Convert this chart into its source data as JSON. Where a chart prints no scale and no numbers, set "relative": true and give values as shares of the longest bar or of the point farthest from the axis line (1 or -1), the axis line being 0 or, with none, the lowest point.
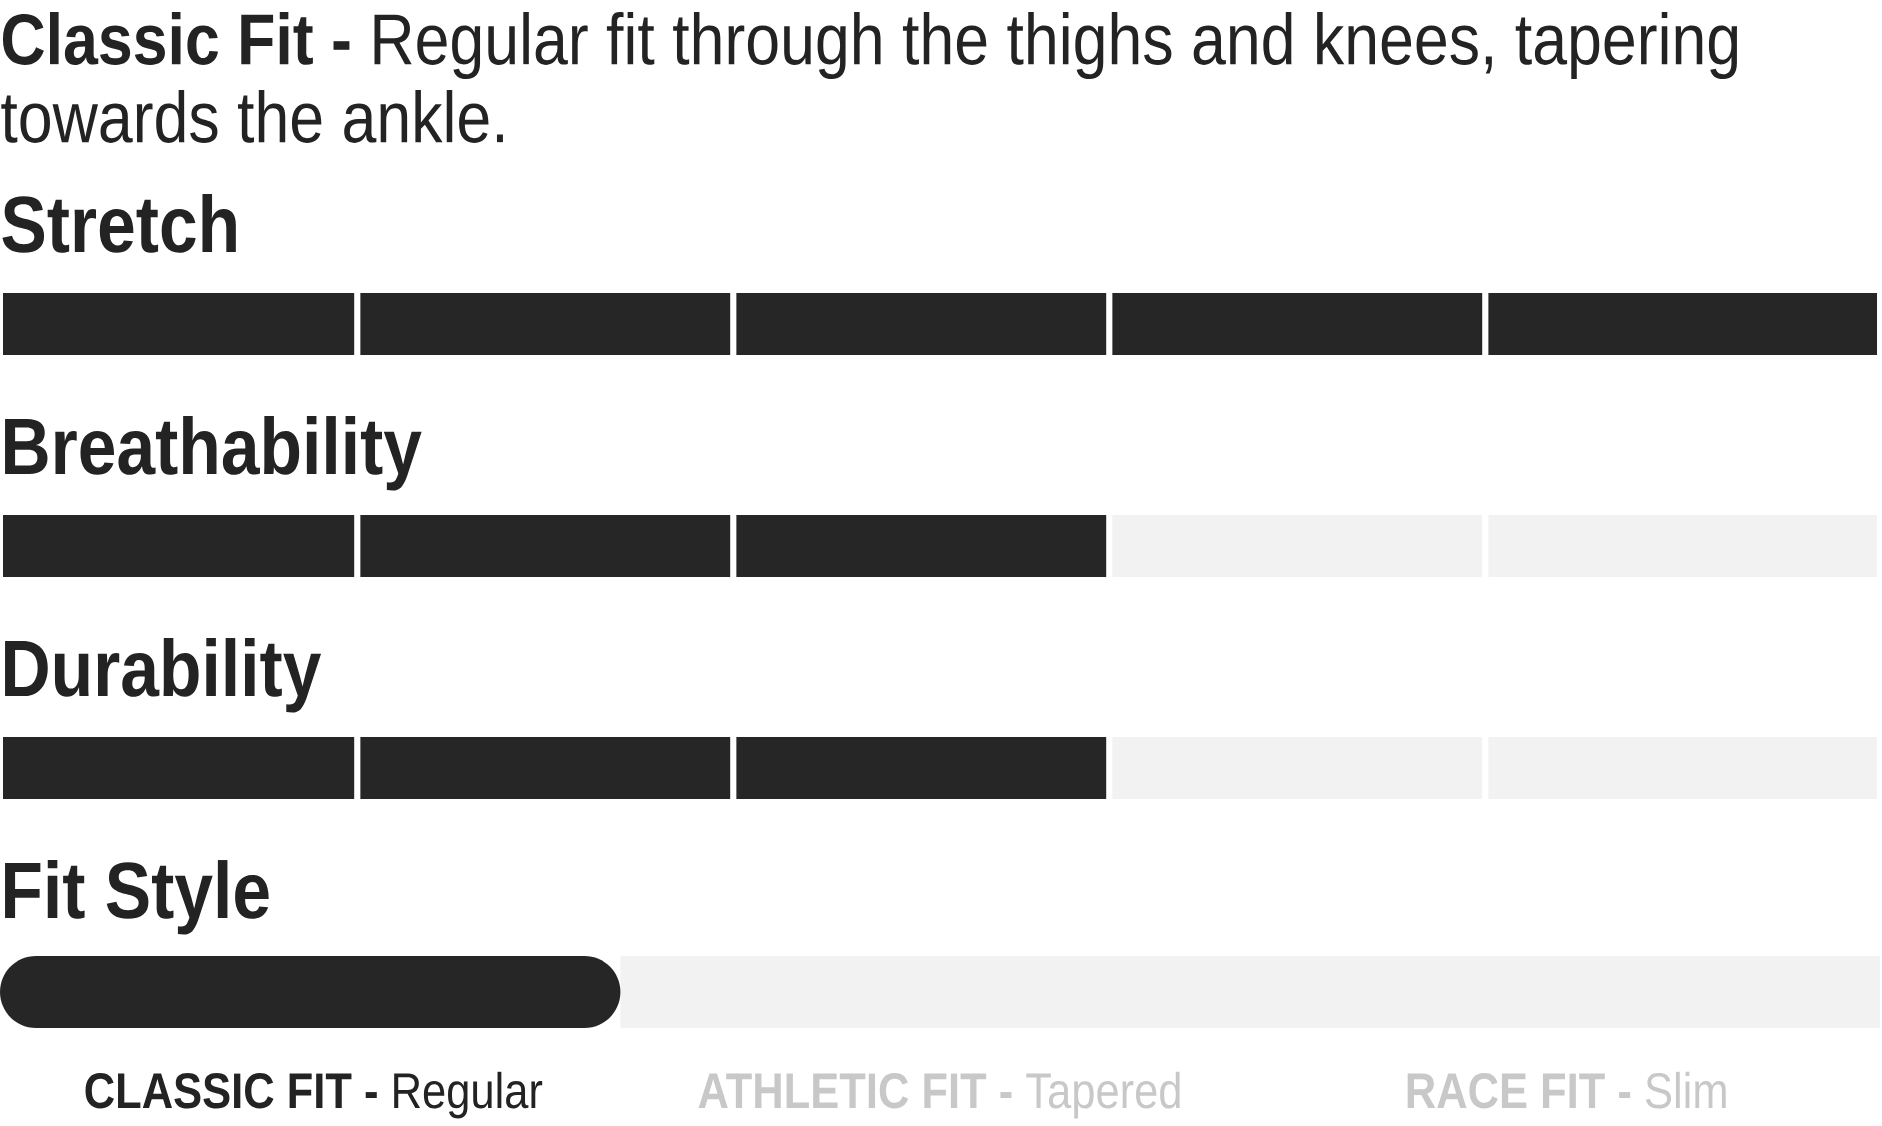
{
  "chart_data": [
    {
      "type": "bar",
      "title": "**Classic Fit -** Regular fit through the thighs and knees, tapering towards the ankle.",
      "orientation": "horizontal",
      "stacked": true,
      "relative": true,
      "categories": [
        "Stretch"
      ],
      "series": [
        {
          "color": "#262626",
          "values": [
            0.19
          ]
        },
        {
          "color": "#262626",
          "values": [
            0.2
          ]
        },
        {
          "color": "#262626",
          "values": [
            0.2
          ]
        },
        {
          "color": "#262626",
          "values": [
            0.2
          ]
        },
        {
          "color": "#262626",
          "values": [
            0.21
          ]
        }
      ]
    },
    {
      "type": "bar",
      "orientation": "horizontal",
      "stacked": true,
      "relative": true,
      "categories": [
        "Breathability"
      ],
      "series": [
        {
          "color": "#262626",
          "values": [
            0.19
          ]
        },
        {
          "color": "#262626",
          "values": [
            0.2
          ]
        },
        {
          "color": "#262626",
          "values": [
            0.2
          ]
        },
        {
          "color": "#f2f2f2",
          "values": [
            0.2
          ]
        },
        {
          "color": "#f2f2f2",
          "values": [
            0.21
          ]
        }
      ]
    },
    {
      "type": "bar",
      "orientation": "horizontal",
      "stacked": true,
      "relative": true,
      "categories": [
        "Durability"
      ],
      "series": [
        {
          "color": "#262626",
          "values": [
            0.19
          ]
        },
        {
          "color": "#262626",
          "values": [
            0.2
          ]
        },
        {
          "color": "#262626",
          "values": [
            0.2
          ]
        },
        {
          "color": "#f2f2f2",
          "values": [
            0.2
          ]
        },
        {
          "color": "#f2f2f2",
          "values": [
            0.21
          ]
        }
      ]
    },
    {
      "type": "bar",
      "orientation": "horizontal",
      "stacked": true,
      "relative": true,
      "categories": [
        "Fit Style"
      ],
      "series": [
        {
          "color": "#262626",
          "values": [
            0.33
          ]
        },
        {
          "color": "#f2f2f2",
          "values": [
            0.67
          ]
        }
      ],
      "annotations": [
        "**CLASSIC FIT -** Regular",
        "**ATHLETIC FIT -** Tapered",
        "**RACE FIT -** Slim"
      ]
    }
  ]
}
